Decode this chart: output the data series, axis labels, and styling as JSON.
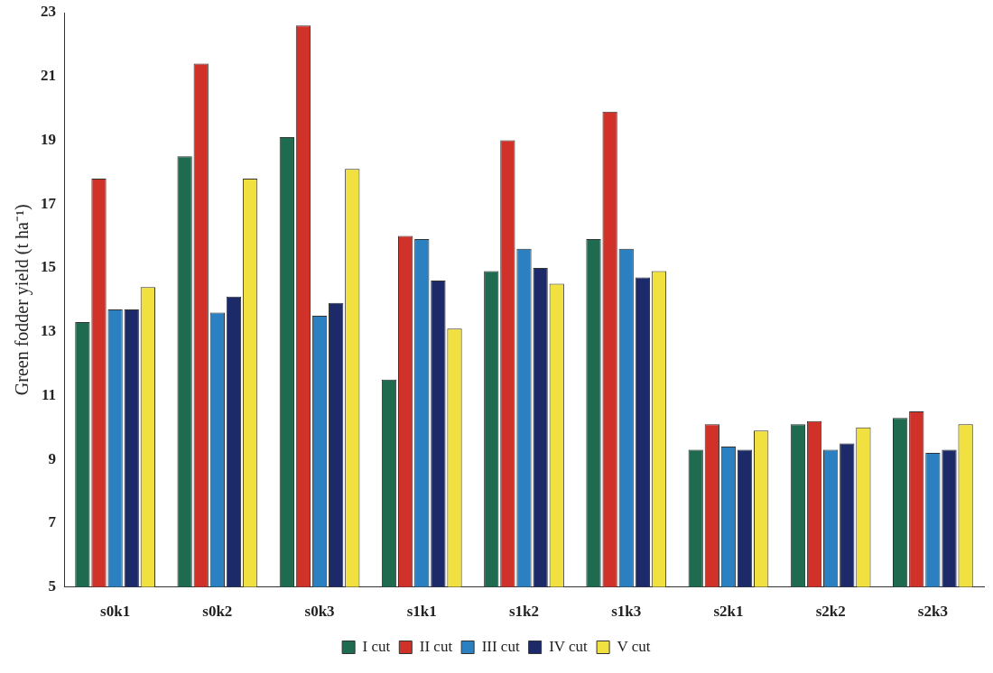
{
  "chart_data": {
    "type": "bar",
    "ylabel": "Green fodder yield (t ha⁻¹)",
    "categories": [
      "s0k1",
      "s0k2",
      "s0k3",
      "s1k1",
      "s1k2",
      "s1k3",
      "s2k1",
      "s2k2",
      "s2k3"
    ],
    "series": [
      {
        "name": "I cut",
        "color": "#1f6b50",
        "values": [
          13.3,
          18.5,
          19.1,
          11.5,
          14.9,
          15.9,
          9.3,
          10.1,
          10.3
        ]
      },
      {
        "name": "II cut",
        "color": "#d0322a",
        "values": [
          17.8,
          21.4,
          22.6,
          16.0,
          19.0,
          19.9,
          10.1,
          10.2,
          10.5
        ]
      },
      {
        "name": "III cut",
        "color": "#2a80c0",
        "values": [
          13.7,
          13.6,
          13.5,
          15.9,
          15.6,
          15.6,
          9.4,
          9.3,
          9.2
        ]
      },
      {
        "name": "IV cut",
        "color": "#1c2a6a",
        "values": [
          13.7,
          14.1,
          13.9,
          14.6,
          15.0,
          14.7,
          9.3,
          9.5,
          9.3
        ]
      },
      {
        "name": "V cut",
        "color": "#f0e040",
        "values": [
          14.4,
          17.8,
          18.1,
          13.1,
          14.5,
          14.9,
          9.9,
          10.0,
          10.1
        ]
      }
    ],
    "ylim": [
      5,
      23
    ],
    "yticks": [
      5,
      7,
      9,
      11,
      13,
      15,
      17,
      19,
      21,
      23
    ],
    "grid": false,
    "legend": "bottom"
  }
}
